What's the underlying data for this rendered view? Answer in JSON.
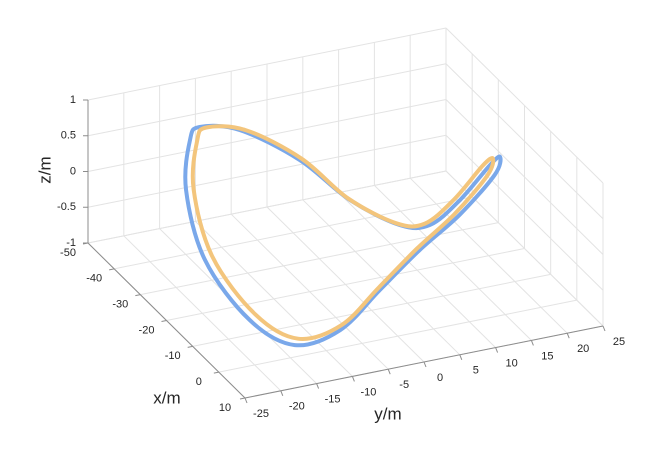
{
  "chart_data": {
    "type": "line3d",
    "xlabel": "x/m",
    "ylabel": "y/m",
    "zlabel": "z/m",
    "xlim": [
      -50,
      10
    ],
    "ylim": [
      -25,
      25
    ],
    "zlim": [
      -1,
      1
    ],
    "xticks": [
      -50,
      -40,
      -30,
      -20,
      -10,
      0,
      10
    ],
    "yticks": [
      -25,
      -20,
      -15,
      -10,
      -5,
      0,
      5,
      10,
      15,
      20,
      25
    ],
    "zticks": [
      -1,
      -0.5,
      0,
      0.5,
      1
    ],
    "grid": true,
    "series": [
      {
        "color": "#7aa8ea",
        "x": [
          -45.6,
          -42.0,
          -33.1,
          -21.6,
          -12.6,
          -10.7,
          -14.5,
          -19.2,
          -21.1,
          -18.0,
          -12.0,
          -5.6,
          2.4,
          8.1,
          7.7,
          -3.3,
          -20.9,
          -37.7,
          -46.6
        ],
        "y": [
          -11.0,
          -6.7,
          -1.6,
          1.2,
          4.9,
          8.4,
          14.0,
          19.9,
          22.0,
          20.1,
          13.0,
          5.1,
          -3.4,
          -11.0,
          -17.2,
          -19.5,
          -19.3,
          -15.8,
          -12.0
        ],
        "z": [
          0.5,
          0.5,
          0.3,
          0.1,
          0,
          0,
          0.1,
          0.3,
          0.3,
          0.2,
          0,
          -0.1,
          -0.2,
          -0.4,
          -0.5,
          -0.5,
          -0.3,
          0,
          0.3
        ]
      },
      {
        "color": "#f3c57c",
        "x": [
          -45.0,
          -41.5,
          -33.0,
          -21.8,
          -13.0,
          -11.0,
          -14.6,
          -19.0,
          -20.6,
          -17.8,
          -12.2,
          -5.8,
          2.0,
          7.5,
          7.0,
          -3.5,
          -20.5,
          -37.0,
          -45.8
        ],
        "y": [
          -10.3,
          -6.0,
          -1.4,
          1.0,
          4.5,
          7.8,
          13.2,
          18.8,
          20.8,
          19.0,
          12.4,
          4.8,
          -3.4,
          -10.6,
          -16.5,
          -18.6,
          -18.4,
          -15.0,
          -11.3
        ],
        "z": [
          0.5,
          0.5,
          0.32,
          0.12,
          0.02,
          0.02,
          0.12,
          0.32,
          0.32,
          0.22,
          0.02,
          -0.08,
          -0.18,
          -0.36,
          -0.45,
          -0.45,
          -0.26,
          0.02,
          0.3
        ]
      }
    ]
  }
}
